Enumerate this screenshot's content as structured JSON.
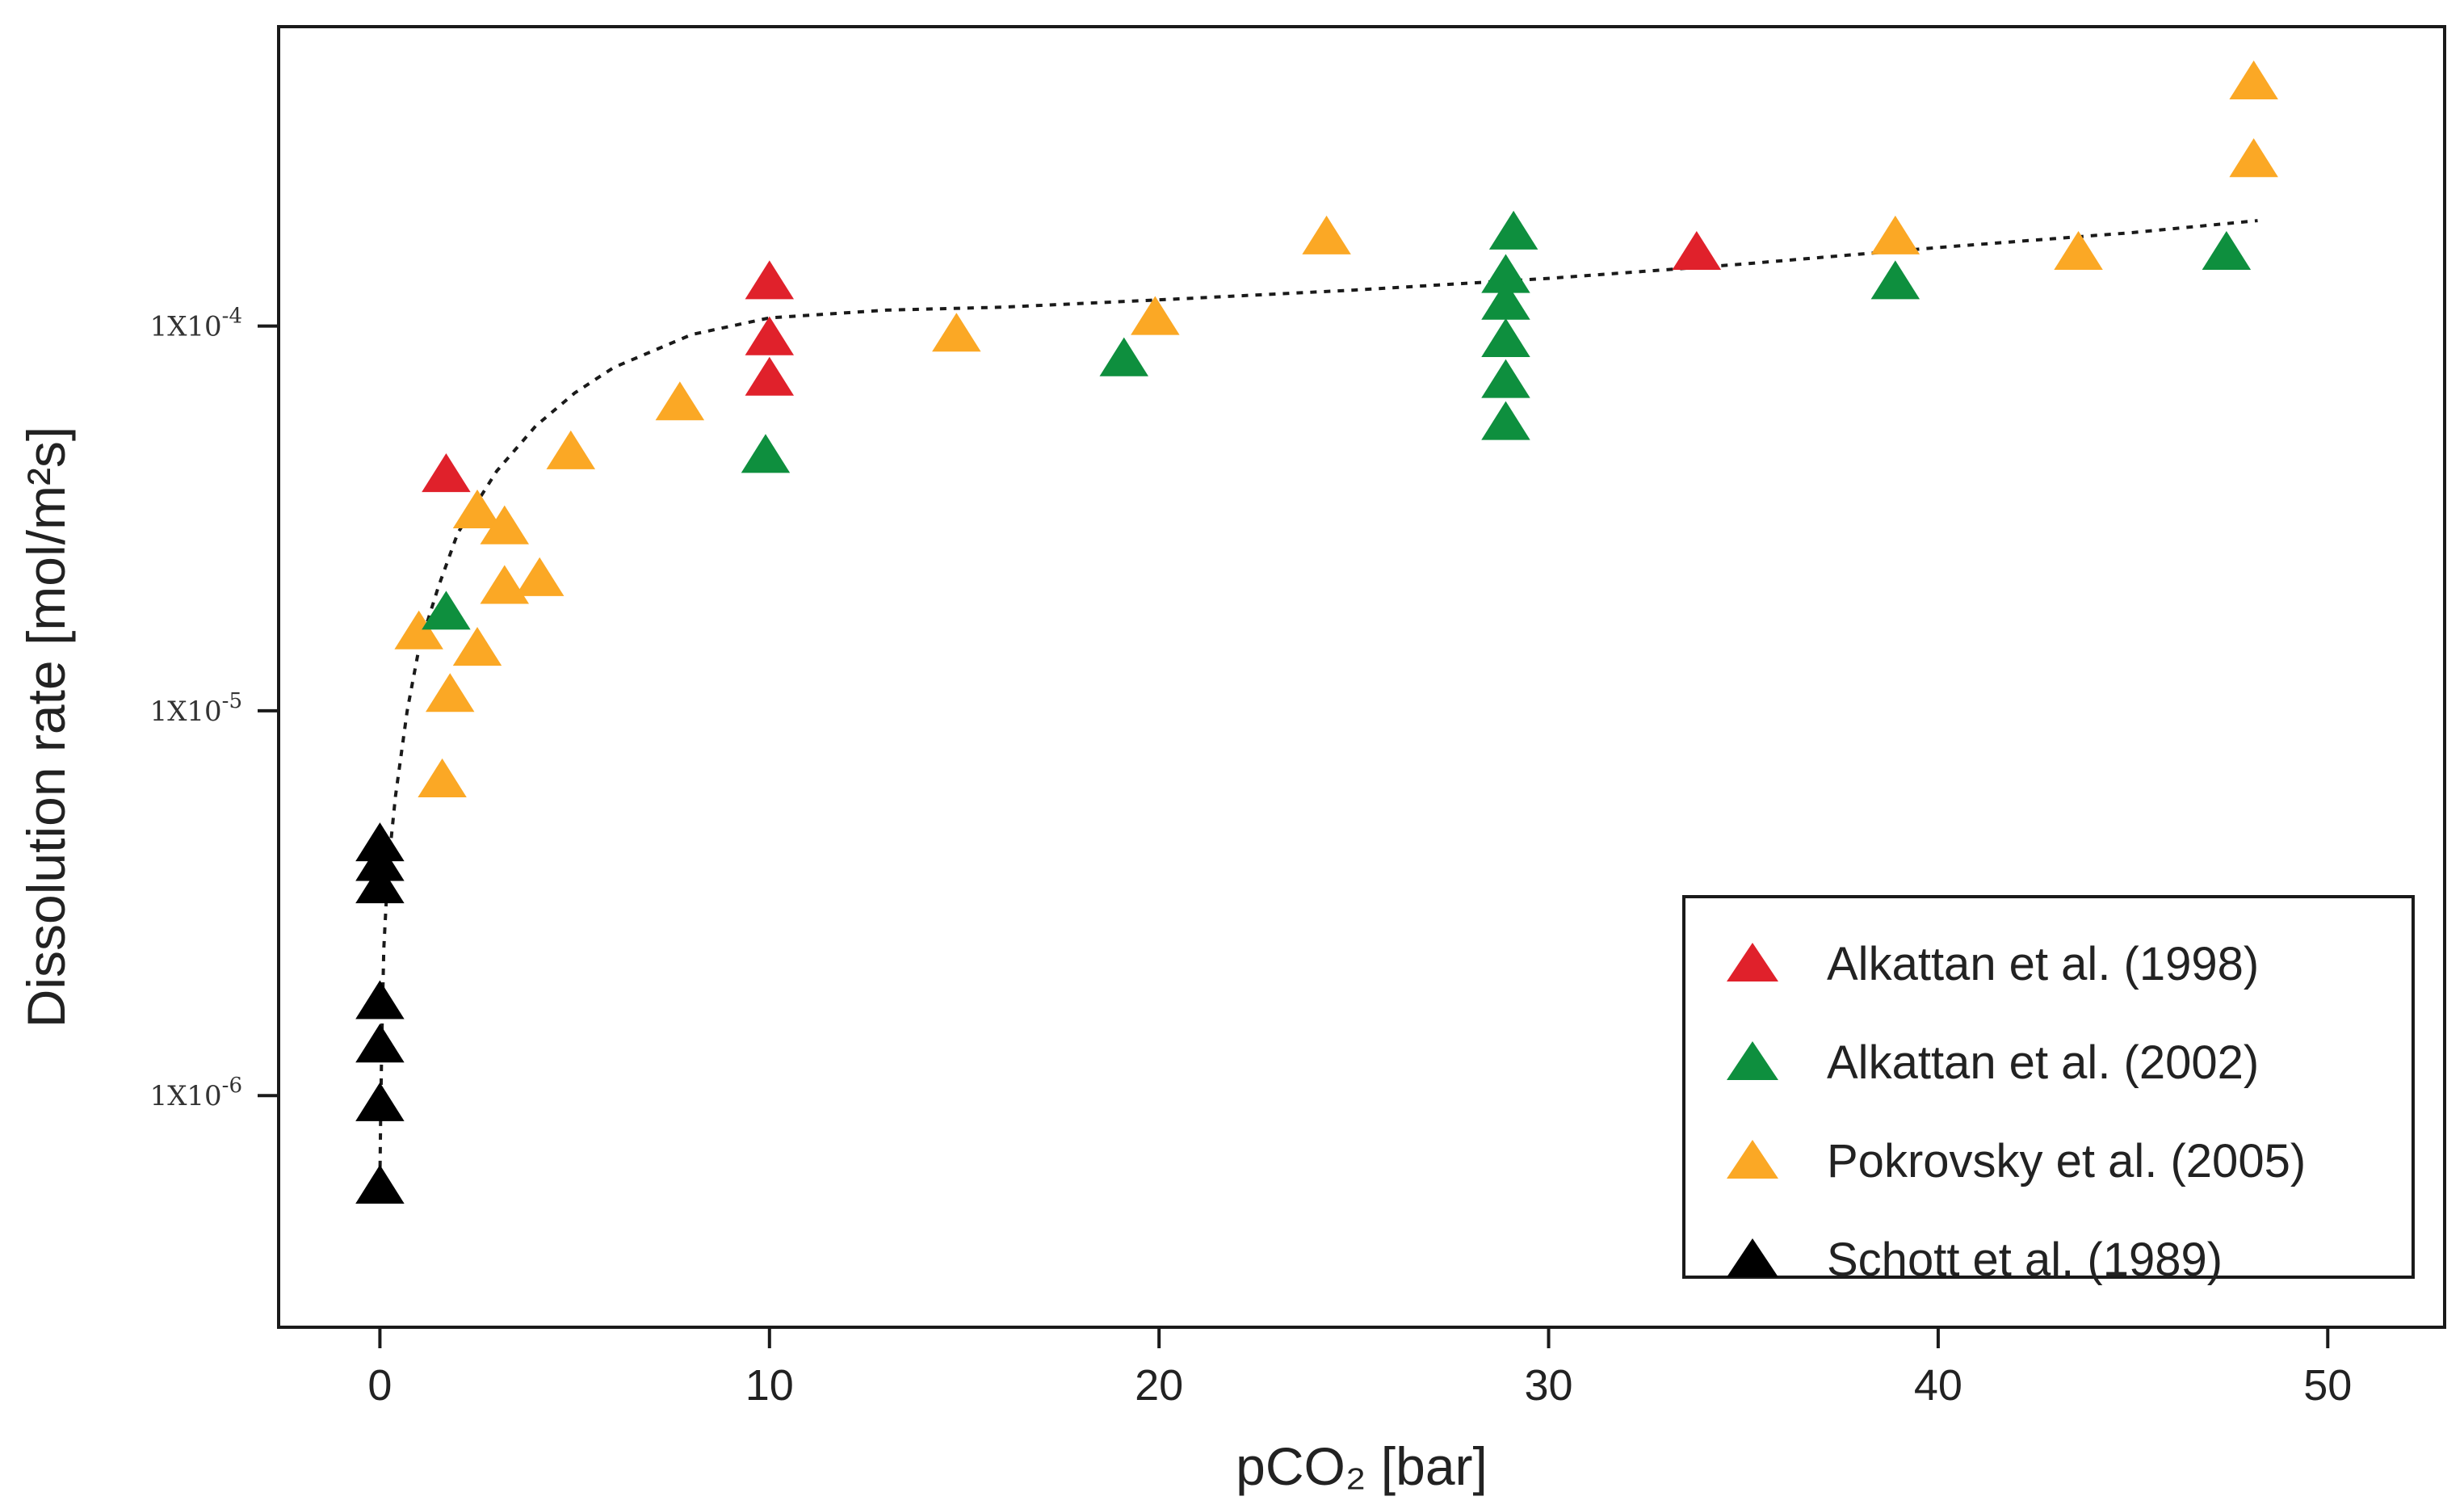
{
  "chart_data": {
    "type": "scatter",
    "title": "",
    "xlabel": "pCO₂  [bar]",
    "ylabel": "Dissolution rate  [mol/m²s]",
    "xlim": [
      -2.6,
      53
    ],
    "ylim": [
      2.5e-07,
      0.0006
    ],
    "yscale": "log",
    "grid": false,
    "legend_position": "bottom-right",
    "x_ticks": [
      0,
      10,
      20,
      30,
      40,
      50
    ],
    "y_ticks": [
      {
        "value": 1e-06,
        "mantissa": "1X10",
        "exponent": "-6"
      },
      {
        "value": 1e-05,
        "mantissa": "1X10",
        "exponent": "-5"
      },
      {
        "value": 0.0001,
        "mantissa": "1X10",
        "exponent": "-4"
      }
    ],
    "series": [
      {
        "name": "Alkattan et al. (1998)",
        "color": "#e0212b",
        "marker": "triangle",
        "points": [
          [
            1.7,
            4.1e-05
          ],
          [
            10,
            0.00013
          ],
          [
            10,
            9.3e-05
          ],
          [
            10,
            7.3e-05
          ],
          [
            33.8,
            0.000155
          ]
        ]
      },
      {
        "name": "Alkattan et al. (2002)",
        "color": "#0e8f3e",
        "marker": "triangle",
        "points": [
          [
            1.7,
            1.8e-05
          ],
          [
            9.9,
            4.6e-05
          ],
          [
            19.1,
            8.2e-05
          ],
          [
            29.1,
            0.000175
          ],
          [
            28.9,
            0.000135
          ],
          [
            28.9,
            0.000115
          ],
          [
            28.9,
            9.2e-05
          ],
          [
            28.9,
            7.2e-05
          ],
          [
            28.9,
            5.6e-05
          ],
          [
            38.9,
            0.00013
          ],
          [
            47.4,
            0.000155
          ]
        ]
      },
      {
        "name": "Pokrovsky et al. (2005)",
        "color": "#fba825",
        "marker": "triangle",
        "points": [
          [
            1.0,
            1.6e-05
          ],
          [
            1.6,
            6.6e-06
          ],
          [
            1.8,
            1.1e-05
          ],
          [
            2.5,
            1.45e-05
          ],
          [
            2.5,
            3.3e-05
          ],
          [
            3.2,
            3e-05
          ],
          [
            3.2,
            2.1e-05
          ],
          [
            4.1,
            2.2e-05
          ],
          [
            4.9,
            4.7e-05
          ],
          [
            7.7,
            6.3e-05
          ],
          [
            14.8,
            9.5e-05
          ],
          [
            19.9,
            0.000105
          ],
          [
            24.3,
            0.00017
          ],
          [
            38.9,
            0.00017
          ],
          [
            43.6,
            0.000155
          ],
          [
            48.1,
            0.00043
          ],
          [
            48.1,
            0.00027
          ]
        ]
      },
      {
        "name": "Schott et al. (1989)",
        "color": "#000000",
        "marker": "triangle",
        "points": [
          [
            0,
            4.5e-06
          ],
          [
            0,
            4e-06
          ],
          [
            0,
            3.5e-06
          ],
          [
            0,
            1.75e-06
          ],
          [
            0,
            1.35e-06
          ],
          [
            0,
            9.5e-07
          ],
          [
            0,
            5.8e-07
          ]
        ]
      }
    ],
    "fit_line": {
      "style": "dotted",
      "color": "#1a1a1a",
      "points": [
        [
          0,
          6e-07
        ],
        [
          0.02,
          9e-07
        ],
        [
          0.05,
          1.4e-06
        ],
        [
          0.1,
          2.4e-06
        ],
        [
          0.2,
          3.8e-06
        ],
        [
          0.4,
          6e-06
        ],
        [
          0.7,
          1e-05
        ],
        [
          1.0,
          1.45e-05
        ],
        [
          1.5,
          2.1e-05
        ],
        [
          2.0,
          2.9e-05
        ],
        [
          3.0,
          4.2e-05
        ],
        [
          4.0,
          5.5e-05
        ],
        [
          5.0,
          6.7e-05
        ],
        [
          6.0,
          7.8e-05
        ],
        [
          8.0,
          9.5e-05
        ],
        [
          10.0,
          0.000105
        ],
        [
          13.0,
          0.00011
        ],
        [
          16.0,
          0.000112
        ],
        [
          20.0,
          0.000117
        ],
        [
          25.0,
          0.000124
        ],
        [
          30.0,
          0.000133
        ],
        [
          35.0,
          0.000145
        ],
        [
          40.0,
          0.00016
        ],
        [
          45.0,
          0.000175
        ],
        [
          48.2,
          0.000188
        ]
      ]
    }
  }
}
